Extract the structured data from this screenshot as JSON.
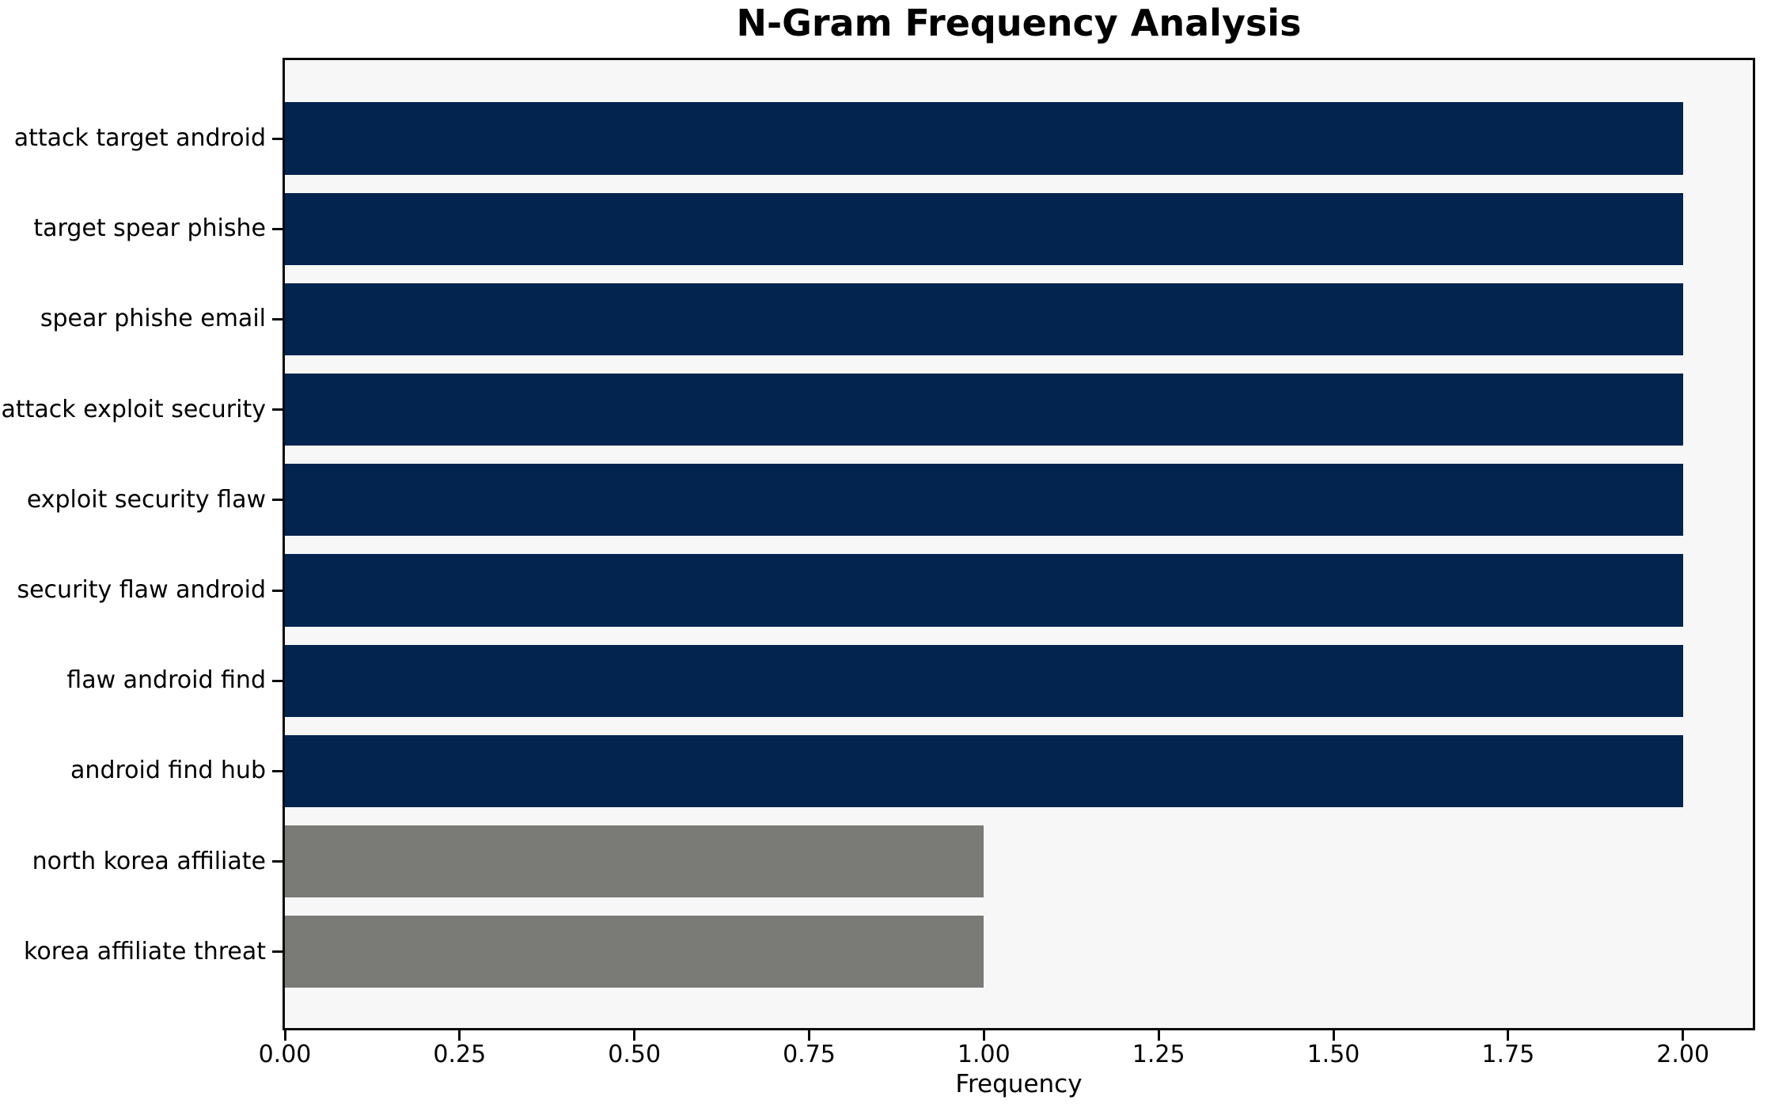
{
  "chart_data": {
    "type": "bar",
    "orientation": "horizontal",
    "title": "N-Gram Frequency Analysis",
    "xlabel": "Frequency",
    "ylabel": "",
    "xlim": [
      0,
      2.1
    ],
    "xticks": [
      "0.00",
      "0.25",
      "0.50",
      "0.75",
      "1.00",
      "1.25",
      "1.50",
      "1.75",
      "2.00"
    ],
    "grid": false,
    "legend": null,
    "categories": [
      "attack target android",
      "target spear phishe",
      "spear phishe email",
      "attack exploit security",
      "exploit security flaw",
      "security flaw android",
      "flaw android find",
      "android find hub",
      "north korea affiliate",
      "korea affiliate threat"
    ],
    "values": [
      2,
      2,
      2,
      2,
      2,
      2,
      2,
      2,
      1,
      1
    ],
    "bar_colors": [
      "#042450",
      "#042450",
      "#042450",
      "#042450",
      "#042450",
      "#042450",
      "#042450",
      "#042450",
      "#7a7a76",
      "#7a7a76"
    ]
  },
  "colors": {
    "navy": "#042450",
    "gray": "#7a7a76",
    "plot_background": "#f7f7f7",
    "figure_background": "#ffffff",
    "spine": "#0a0a0a",
    "text": "#000000"
  }
}
